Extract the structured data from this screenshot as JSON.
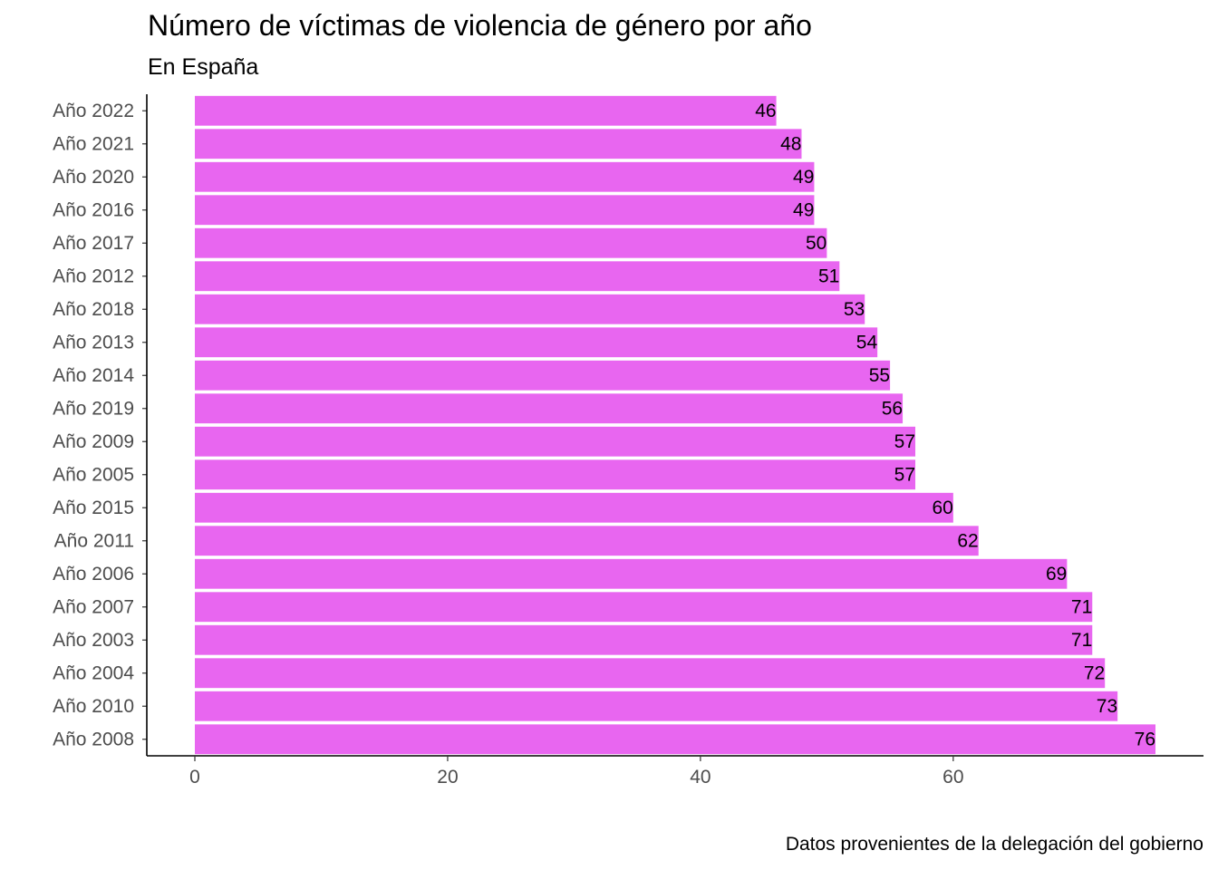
{
  "chart_data": {
    "type": "bar",
    "orientation": "horizontal",
    "title": "Número de víctimas de violencia de género por año",
    "subtitle": "En España",
    "caption": "Datos provenientes de la delegación del gobierno",
    "xlabel": "",
    "ylabel": "",
    "categories": [
      "Año 2022",
      "Año 2021",
      "Año 2020",
      "Año 2016",
      "Año 2017",
      "Año 2012",
      "Año 2018",
      "Año 2013",
      "Año 2014",
      "Año 2019",
      "Año 2009",
      "Año 2005",
      "Año 2015",
      "Año 2011",
      "Año 2006",
      "Año 2007",
      "Año 2003",
      "Año 2004",
      "Año 2010",
      "Año 2008"
    ],
    "values": [
      46,
      48,
      49,
      49,
      50,
      51,
      53,
      54,
      55,
      56,
      57,
      57,
      60,
      62,
      69,
      71,
      71,
      72,
      73,
      76
    ],
    "xlim": [
      -3.8,
      79.8
    ],
    "xticks": [
      0,
      20,
      40,
      60
    ],
    "xtick_labels": [
      "0",
      "20",
      "40",
      "60"
    ],
    "bar_color": "#e866f0",
    "grid": false,
    "legend": "none"
  }
}
